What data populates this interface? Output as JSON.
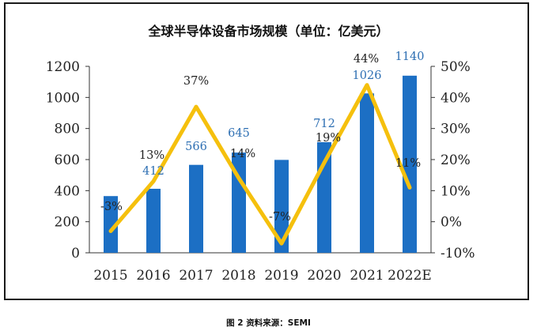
{
  "title": "全球半导体设备市场规模（单位：亿美元）",
  "caption": "图 2 资料来源：SEMI",
  "colors": {
    "bar": "#1c6fc4",
    "line": "#f5c00d",
    "bar_label": "#2e6fb3"
  },
  "chart_data": {
    "type": "bar+line",
    "categories": [
      "2015",
      "2016",
      "2017",
      "2018",
      "2019",
      "2020",
      "2021",
      "2022E"
    ],
    "series": [
      {
        "type": "bar",
        "axis": "left",
        "values": [
          365,
          412,
          566,
          645,
          598,
          712,
          1026,
          1140
        ],
        "data_labels": [
          "",
          "412",
          "566",
          "645",
          "",
          "712",
          "1026",
          "1140"
        ]
      },
      {
        "type": "line",
        "axis": "right",
        "values": [
          -3,
          13,
          37,
          14,
          -7,
          19,
          44,
          11
        ],
        "data_labels": [
          "-3%",
          "13%",
          "37%",
          "14%",
          "-7%",
          "19%",
          "44%",
          "11%"
        ]
      }
    ],
    "y_left": {
      "ylim": [
        0,
        1200
      ],
      "ticks": [
        "0",
        "200",
        "400",
        "600",
        "800",
        "1000",
        "1200"
      ]
    },
    "y_right": {
      "ylim": [
        -10,
        50
      ],
      "ticks": [
        "-10%",
        "0%",
        "10%",
        "20%",
        "30%",
        "40%",
        "50%"
      ]
    },
    "grid": false,
    "legend": "none"
  }
}
